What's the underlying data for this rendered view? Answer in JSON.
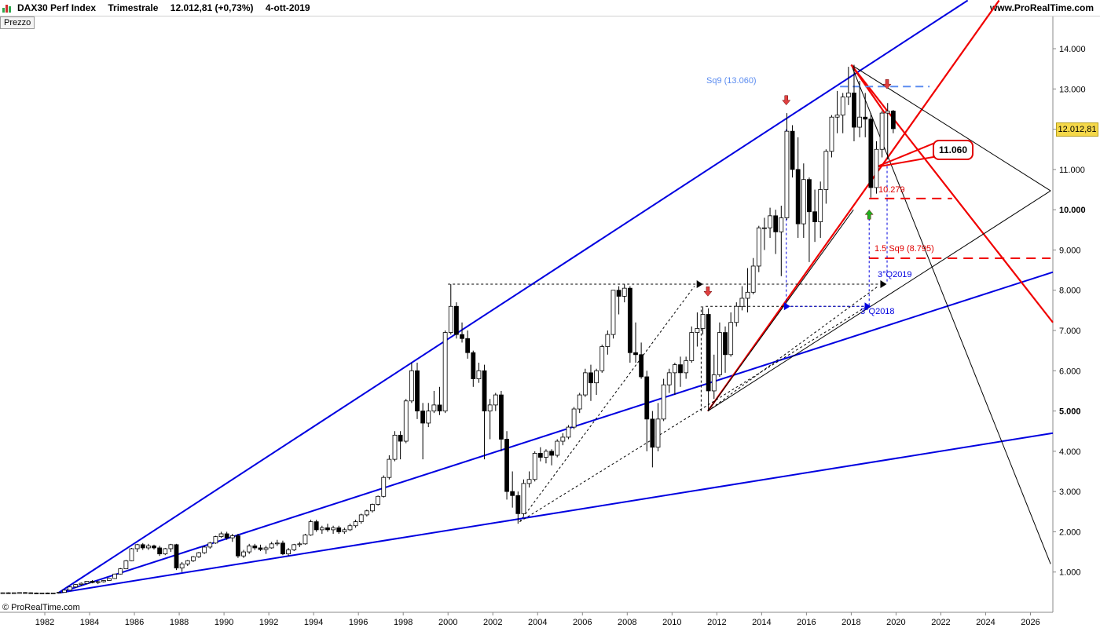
{
  "header": {
    "instrument": "DAX30 Perf Index",
    "period": "Trimestrale",
    "quote": "12.012,81 (+0,73%)",
    "date": "4-ott-2019",
    "site": "www.ProRealTime.com"
  },
  "pane_label": "Prezzo",
  "footer_logo": "© ProRealTime.com",
  "last_price": "12.012,81",
  "callout": "11.060",
  "annotations": {
    "sq9": "Sq9 (13.060)",
    "fib": "10.279",
    "sq9_15": "1.5 Sq9 (8.795)",
    "q3_2019": "3°Q2019",
    "q3_2018": "3°Q2018"
  },
  "colors": {
    "up_candle": "#ffffff",
    "down_candle": "#000000",
    "trend_blue": "#0000e0",
    "trend_red": "#f00000",
    "sq9_line": "#5b8cf0",
    "price_tag": "#f5d84a"
  },
  "chart_data": {
    "type": "candlestick",
    "timeframe": "quarterly",
    "x_ticks": [
      "1982",
      "1984",
      "1986",
      "1988",
      "1990",
      "1992",
      "1994",
      "1996",
      "1998",
      "2000",
      "2002",
      "2004",
      "2006",
      "2008",
      "2010",
      "2012",
      "2014",
      "2016",
      "2018",
      "2020",
      "2022",
      "2024",
      "2026"
    ],
    "y_ticks": [
      "1.000",
      "2.000",
      "3.000",
      "4.000",
      "5.000",
      "6.000",
      "7.000",
      "8.000",
      "9.000",
      "10.000",
      "11.000",
      "12.000",
      "13.000",
      "14.000"
    ],
    "ylim": [
      0,
      14800
    ],
    "xlim": [
      1980.0,
      2027.0
    ],
    "last_value": 12012.81,
    "candles": [
      [
        1980.0,
        480,
        490,
        470,
        485
      ],
      [
        1980.25,
        485,
        495,
        475,
        480
      ],
      [
        1980.5,
        480,
        490,
        470,
        485
      ],
      [
        1980.75,
        485,
        495,
        478,
        490
      ],
      [
        1981.0,
        490,
        500,
        480,
        485
      ],
      [
        1981.25,
        485,
        495,
        475,
        480
      ],
      [
        1981.5,
        480,
        490,
        470,
        475
      ],
      [
        1981.75,
        475,
        485,
        465,
        480
      ],
      [
        1982.0,
        480,
        490,
        470,
        475
      ],
      [
        1982.25,
        475,
        485,
        465,
        480
      ],
      [
        1982.5,
        480,
        500,
        470,
        495
      ],
      [
        1982.75,
        495,
        560,
        490,
        550
      ],
      [
        1983.0,
        550,
        640,
        540,
        630
      ],
      [
        1983.25,
        630,
        700,
        610,
        690
      ],
      [
        1983.5,
        690,
        740,
        660,
        720
      ],
      [
        1983.75,
        720,
        780,
        700,
        770
      ],
      [
        1984.0,
        770,
        800,
        720,
        740
      ],
      [
        1984.25,
        740,
        780,
        700,
        760
      ],
      [
        1984.5,
        760,
        800,
        740,
        790
      ],
      [
        1984.75,
        790,
        850,
        780,
        840
      ],
      [
        1985.0,
        840,
        960,
        830,
        950
      ],
      [
        1985.25,
        950,
        1100,
        940,
        1080
      ],
      [
        1985.5,
        1080,
        1300,
        1070,
        1280
      ],
      [
        1985.75,
        1280,
        1600,
        1270,
        1580
      ],
      [
        1986.0,
        1580,
        1700,
        1500,
        1680
      ],
      [
        1986.25,
        1680,
        1720,
        1550,
        1600
      ],
      [
        1986.5,
        1600,
        1700,
        1550,
        1650
      ],
      [
        1986.75,
        1650,
        1680,
        1560,
        1600
      ],
      [
        1987.0,
        1600,
        1650,
        1400,
        1450
      ],
      [
        1987.25,
        1450,
        1600,
        1420,
        1580
      ],
      [
        1987.5,
        1580,
        1700,
        1500,
        1680
      ],
      [
        1987.75,
        1680,
        1700,
        1050,
        1100
      ],
      [
        1988.0,
        1100,
        1250,
        1000,
        1200
      ],
      [
        1988.25,
        1200,
        1300,
        1150,
        1280
      ],
      [
        1988.5,
        1280,
        1400,
        1250,
        1380
      ],
      [
        1988.75,
        1380,
        1500,
        1350,
        1480
      ],
      [
        1989.0,
        1480,
        1650,
        1450,
        1620
      ],
      [
        1989.25,
        1620,
        1750,
        1580,
        1720
      ],
      [
        1989.5,
        1720,
        1900,
        1700,
        1880
      ],
      [
        1989.75,
        1880,
        2000,
        1850,
        1950
      ],
      [
        1990.0,
        1950,
        2000,
        1800,
        1850
      ],
      [
        1990.25,
        1850,
        1950,
        1750,
        1900
      ],
      [
        1990.5,
        1900,
        1950,
        1350,
        1400
      ],
      [
        1990.75,
        1400,
        1550,
        1350,
        1500
      ],
      [
        1991.0,
        1500,
        1700,
        1450,
        1650
      ],
      [
        1991.25,
        1650,
        1700,
        1550,
        1600
      ],
      [
        1991.5,
        1600,
        1680,
        1520,
        1560
      ],
      [
        1991.75,
        1560,
        1650,
        1450,
        1600
      ],
      [
        1992.0,
        1600,
        1750,
        1580,
        1700
      ],
      [
        1992.25,
        1700,
        1800,
        1650,
        1720
      ],
      [
        1992.5,
        1720,
        1780,
        1420,
        1450
      ],
      [
        1992.75,
        1450,
        1600,
        1400,
        1550
      ],
      [
        1993.0,
        1550,
        1700,
        1520,
        1680
      ],
      [
        1993.25,
        1680,
        1750,
        1620,
        1700
      ],
      [
        1993.5,
        1700,
        1950,
        1680,
        1920
      ],
      [
        1993.75,
        1920,
        2300,
        1900,
        2250
      ],
      [
        1994.0,
        2250,
        2300,
        2000,
        2050
      ],
      [
        1994.25,
        2050,
        2150,
        1950,
        2100
      ],
      [
        1994.5,
        2100,
        2200,
        2000,
        2050
      ],
      [
        1994.75,
        2050,
        2150,
        1950,
        2100
      ],
      [
        1995.0,
        2100,
        2150,
        1950,
        2000
      ],
      [
        1995.25,
        2000,
        2100,
        1950,
        2050
      ],
      [
        1995.5,
        2050,
        2200,
        2020,
        2150
      ],
      [
        1995.75,
        2150,
        2300,
        2100,
        2250
      ],
      [
        1996.0,
        2250,
        2450,
        2200,
        2420
      ],
      [
        1996.25,
        2420,
        2550,
        2380,
        2520
      ],
      [
        1996.5,
        2520,
        2700,
        2480,
        2680
      ],
      [
        1996.75,
        2680,
        2900,
        2650,
        2880
      ],
      [
        1997.0,
        2880,
        3400,
        2850,
        3350
      ],
      [
        1997.25,
        3350,
        3900,
        3300,
        3800
      ],
      [
        1997.5,
        3800,
        4500,
        3750,
        4400
      ],
      [
        1997.75,
        4400,
        4500,
        3800,
        4250
      ],
      [
        1998.0,
        4250,
        5300,
        4200,
        5250
      ],
      [
        1998.25,
        5250,
        6200,
        5200,
        6000
      ],
      [
        1998.5,
        6000,
        6200,
        4800,
        5000
      ],
      [
        1998.75,
        5000,
        5200,
        3800,
        4700
      ],
      [
        1999.0,
        4700,
        5200,
        4600,
        5000
      ],
      [
        1999.25,
        5000,
        5500,
        4950,
        5150
      ],
      [
        1999.5,
        5150,
        5600,
        4900,
        5000
      ],
      [
        1999.75,
        5000,
        7000,
        4950,
        6950
      ],
      [
        2000.0,
        6950,
        8150,
        6900,
        7600
      ],
      [
        2000.25,
        7600,
        7700,
        6800,
        6900
      ],
      [
        2000.5,
        6900,
        7200,
        6700,
        6800
      ],
      [
        2000.75,
        6800,
        7000,
        6300,
        6450
      ],
      [
        2001.0,
        6450,
        6500,
        5600,
        5800
      ],
      [
        2001.25,
        5800,
        6200,
        5700,
        6000
      ],
      [
        2001.5,
        6000,
        6150,
        3800,
        5000
      ],
      [
        2001.75,
        5000,
        5300,
        4300,
        5150
      ],
      [
        2002.0,
        5150,
        5450,
        5000,
        5400
      ],
      [
        2002.25,
        5400,
        5500,
        4000,
        4300
      ],
      [
        2002.5,
        4300,
        4500,
        2800,
        3000
      ],
      [
        2002.75,
        3000,
        3500,
        2600,
        2900
      ],
      [
        2003.0,
        2900,
        3000,
        2200,
        2450
      ],
      [
        2003.25,
        2450,
        3300,
        2400,
        3200
      ],
      [
        2003.5,
        3200,
        3500,
        3100,
        3300
      ],
      [
        2003.75,
        3300,
        4000,
        3250,
        3950
      ],
      [
        2004.0,
        3950,
        4100,
        3750,
        3850
      ],
      [
        2004.25,
        3850,
        4050,
        3700,
        4000
      ],
      [
        2004.5,
        4000,
        4050,
        3650,
        3900
      ],
      [
        2004.75,
        3900,
        4300,
        3850,
        4250
      ],
      [
        2005.0,
        4250,
        4450,
        4150,
        4350
      ],
      [
        2005.25,
        4350,
        4650,
        4300,
        4600
      ],
      [
        2005.5,
        4600,
        5100,
        4550,
        5050
      ],
      [
        2005.75,
        5050,
        5450,
        4950,
        5400
      ],
      [
        2006.0,
        5400,
        6050,
        5350,
        5950
      ],
      [
        2006.25,
        5950,
        6150,
        5250,
        5700
      ],
      [
        2006.5,
        5700,
        6050,
        5400,
        6000
      ],
      [
        2006.75,
        6000,
        6650,
        5950,
        6600
      ],
      [
        2007.0,
        6600,
        7000,
        6400,
        6900
      ],
      [
        2007.25,
        6900,
        8000,
        6800,
        8000
      ],
      [
        2007.5,
        8000,
        8100,
        7400,
        7850
      ],
      [
        2007.75,
        7850,
        8150,
        7700,
        8050
      ],
      [
        2008.0,
        8050,
        8100,
        6200,
        6450
      ],
      [
        2008.25,
        6450,
        7200,
        6200,
        6400
      ],
      [
        2008.5,
        6400,
        6700,
        5800,
        5850
      ],
      [
        2008.75,
        5850,
        6000,
        4000,
        4800
      ],
      [
        2009.0,
        4800,
        5000,
        3600,
        4100
      ],
      [
        2009.25,
        4100,
        5200,
        4000,
        4800
      ],
      [
        2009.5,
        4800,
        5800,
        4750,
        5650
      ],
      [
        2009.75,
        5650,
        6050,
        5450,
        5950
      ],
      [
        2010.0,
        5950,
        6200,
        5400,
        6150
      ],
      [
        2010.25,
        6150,
        6350,
        5600,
        5950
      ],
      [
        2010.5,
        5950,
        6350,
        5800,
        6250
      ],
      [
        2010.75,
        6250,
        7100,
        6200,
        6950
      ],
      [
        2011.0,
        6950,
        7450,
        6600,
        7050
      ],
      [
        2011.25,
        7050,
        7600,
        6900,
        7400
      ],
      [
        2011.5,
        7400,
        7550,
        5000,
        5500
      ],
      [
        2011.75,
        5500,
        6400,
        5300,
        5900
      ],
      [
        2012.0,
        5900,
        7200,
        5850,
        6950
      ],
      [
        2012.25,
        6950,
        7100,
        5950,
        6400
      ],
      [
        2012.5,
        6400,
        7450,
        6350,
        7200
      ],
      [
        2012.75,
        7200,
        7700,
        7100,
        7600
      ],
      [
        2013.0,
        7600,
        8100,
        7500,
        7800
      ],
      [
        2013.25,
        7800,
        8550,
        7450,
        7950
      ],
      [
        2013.5,
        7950,
        8800,
        7900,
        8600
      ],
      [
        2013.75,
        8600,
        9600,
        8450,
        9550
      ],
      [
        2014.0,
        9550,
        9800,
        9000,
        9550
      ],
      [
        2014.25,
        9550,
        10050,
        9300,
        9850
      ],
      [
        2014.5,
        9850,
        10000,
        8900,
        9450
      ],
      [
        2014.75,
        9450,
        10100,
        8350,
        9800
      ],
      [
        2015.0,
        9800,
        12400,
        9750,
        11950
      ],
      [
        2015.25,
        11950,
        12100,
        10800,
        11000
      ],
      [
        2015.5,
        11000,
        11800,
        9300,
        9650
      ],
      [
        2015.75,
        9650,
        11150,
        9300,
        10750
      ],
      [
        2016.0,
        10750,
        10800,
        8700,
        9950
      ],
      [
        2016.25,
        9950,
        10500,
        9200,
        9700
      ],
      [
        2016.5,
        9700,
        10700,
        9300,
        10500
      ],
      [
        2016.75,
        10500,
        11500,
        10150,
        11450
      ],
      [
        2017.0,
        11450,
        12350,
        11300,
        12300
      ],
      [
        2017.25,
        12300,
        12950,
        11900,
        12350
      ],
      [
        2017.5,
        12350,
        12900,
        11900,
        12800
      ],
      [
        2017.75,
        12800,
        13550,
        12600,
        12900
      ],
      [
        2018.0,
        12900,
        13600,
        11700,
        12050
      ],
      [
        2018.25,
        12050,
        13200,
        11800,
        12300
      ],
      [
        2018.5,
        12300,
        12900,
        11800,
        12250
      ],
      [
        2018.75,
        12250,
        12400,
        10300,
        10550
      ],
      [
        2019.0,
        10550,
        11700,
        10400,
        11500
      ],
      [
        2019.25,
        11500,
        12450,
        11300,
        12400
      ],
      [
        2019.5,
        12400,
        12650,
        11250,
        12450
      ],
      [
        2019.75,
        12450,
        12480,
        11900,
        12013
      ]
    ]
  }
}
